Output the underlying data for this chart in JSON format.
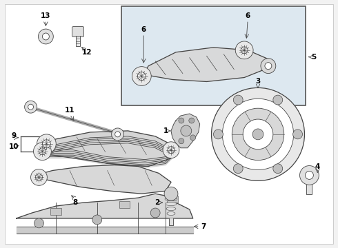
{
  "bg_color": "#f2f2f2",
  "white": "#ffffff",
  "lc": "#444444",
  "gray": "#c0c0c0",
  "dark_gray": "#888888",
  "box_bg": "#dde8f0",
  "label_fs": 7.5
}
